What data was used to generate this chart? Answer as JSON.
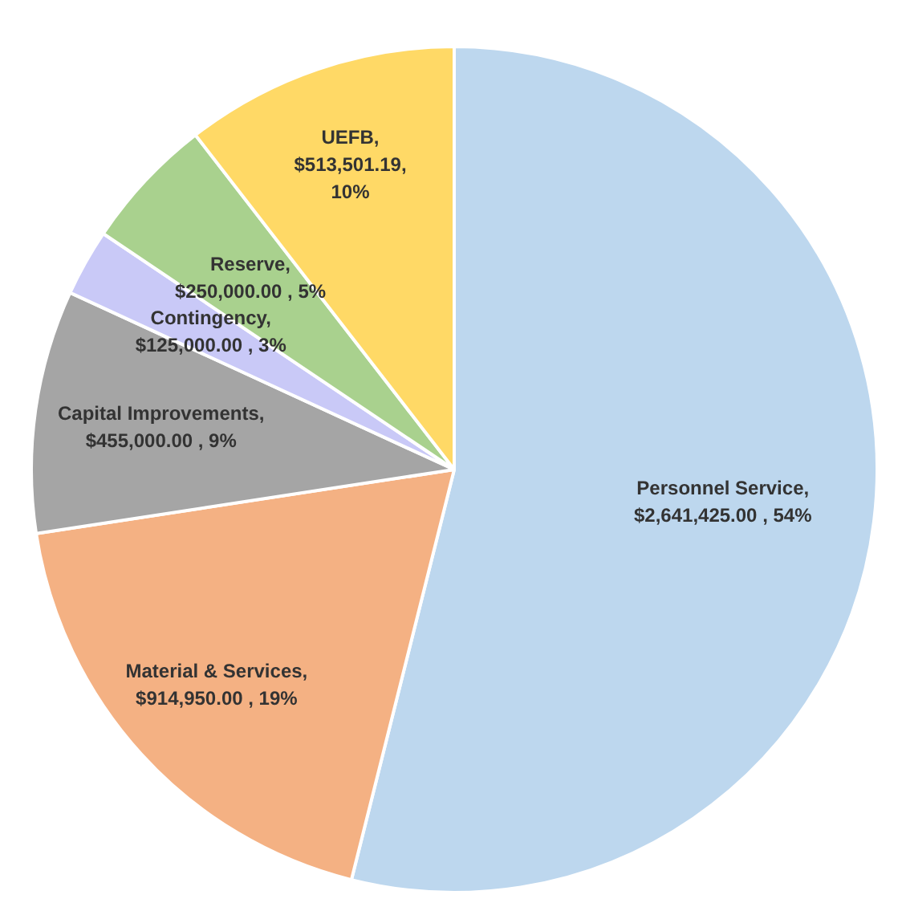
{
  "chart_data": {
    "type": "pie",
    "categories": [
      "Personnel Service",
      "Material & Services",
      "Capital Improvements",
      "Contingency",
      "Reserve",
      "UEFB"
    ],
    "values": [
      2641425.0,
      914950.0,
      455000.0,
      125000.0,
      250000.0,
      513501.19
    ],
    "value_labels": [
      ", $2,641,425.00 , 54%",
      ", $914,950.00 , 19%",
      ", $455,000.00 , 9%",
      ", $125,000.00 , 3%",
      ", $250,000.00 , 5%",
      ", $513,501.19, 10%"
    ],
    "colors": [
      "#bdd7ee",
      "#f4b183",
      "#a5a5a5",
      "#c9c9f7",
      "#a9d18e",
      "#ffd966"
    ],
    "legend": false
  }
}
